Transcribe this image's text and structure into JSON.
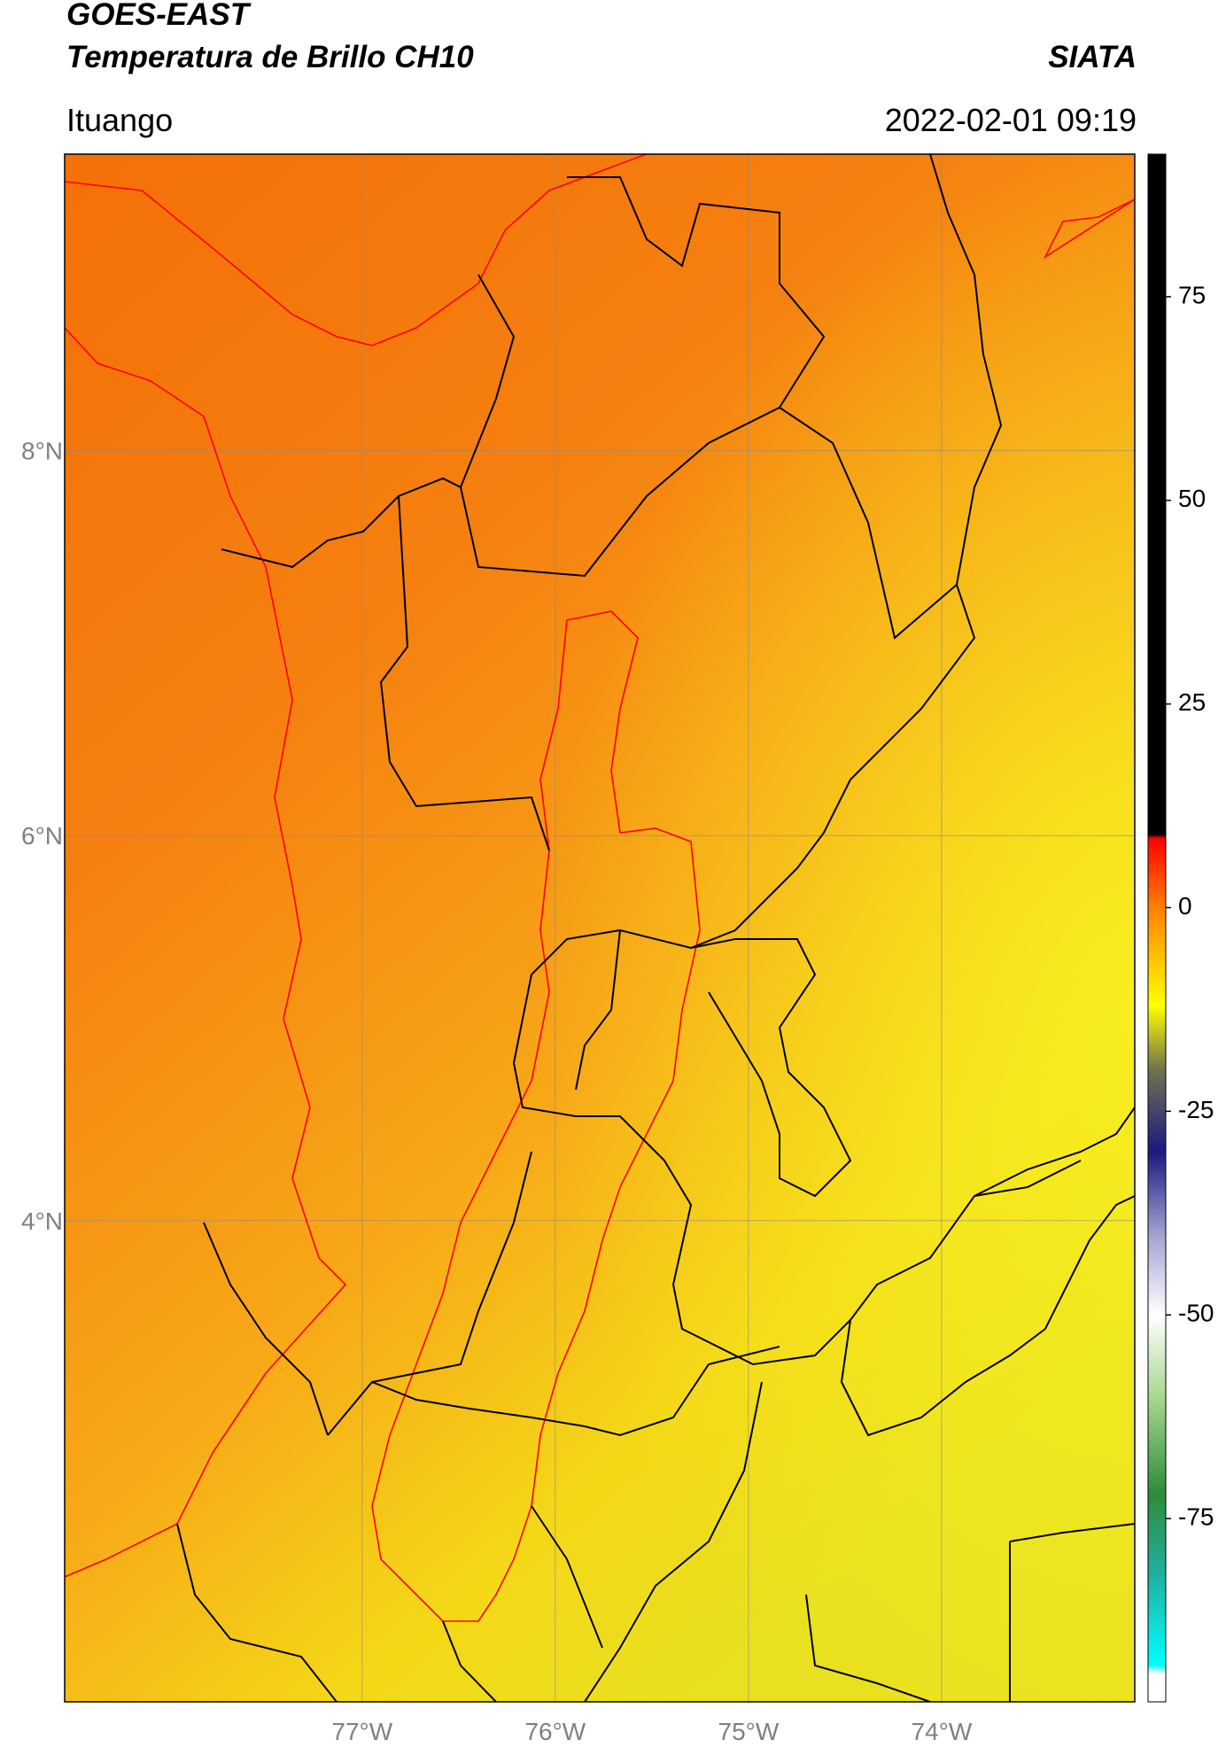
{
  "chart_data": {
    "type": "map",
    "title": "GOES-EAST",
    "subtitle": "Temperatura de Brillo CH10",
    "source": "SIATA",
    "location": "Ituango",
    "timestamp": "2022-02-01 09:19",
    "xlim": [
      -78.54,
      -73.0
    ],
    "ylim": [
      1.5,
      9.54
    ],
    "xticks": [
      {
        "value": -77,
        "label": "77°W"
      },
      {
        "value": -76,
        "label": "76°W"
      },
      {
        "value": -75,
        "label": "75°W"
      },
      {
        "value": -74,
        "label": "74°W"
      }
    ],
    "yticks": [
      {
        "value": 8,
        "label": "8°N"
      },
      {
        "value": 6,
        "label": "6°N"
      },
      {
        "value": 4,
        "label": "4°N"
      }
    ],
    "grid": true,
    "colorbar": {
      "lim": [
        -97.5,
        92.5
      ],
      "ticks": [
        75,
        50,
        25,
        0,
        -25,
        -50,
        -75
      ],
      "stops": [
        {
          "value": 92.5,
          "color": "#000000"
        },
        {
          "value": 9,
          "color": "#000000"
        },
        {
          "value": 8.5,
          "color": "#ff0000"
        },
        {
          "value": 0,
          "color": "#ff8000"
        },
        {
          "value": -12,
          "color": "#ffff00"
        },
        {
          "value": -20,
          "color": "#707050"
        },
        {
          "value": -30,
          "color": "#1a1a80"
        },
        {
          "value": -40,
          "color": "#a0a0d0"
        },
        {
          "value": -50,
          "color": "#ffffff"
        },
        {
          "value": -60,
          "color": "#a8d890"
        },
        {
          "value": -72,
          "color": "#2e8b3a"
        },
        {
          "value": -82,
          "color": "#20b0a0"
        },
        {
          "value": -93,
          "color": "#00ffff"
        },
        {
          "value": -94,
          "color": "#ffffff"
        },
        {
          "value": -97.5,
          "color": "#ffffff"
        }
      ]
    }
  }
}
